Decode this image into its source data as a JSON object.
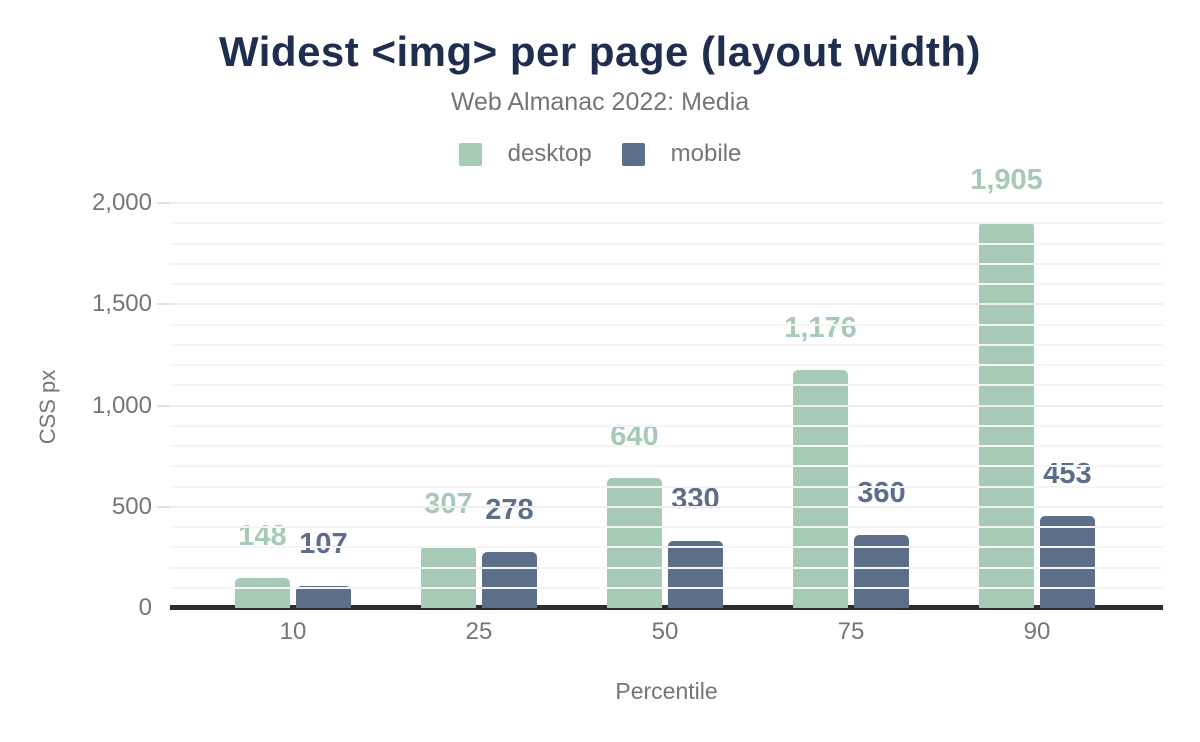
{
  "chart_data": {
    "type": "bar",
    "title": "Widest <img> per page (layout width)",
    "subtitle": "Web Almanac 2022: Media",
    "xlabel": "Percentile",
    "ylabel": "CSS px",
    "categories": [
      "10",
      "25",
      "50",
      "75",
      "90"
    ],
    "series": [
      {
        "name": "desktop",
        "color": "#a7cab7",
        "values": [
          148,
          307,
          640,
          1176,
          1905
        ],
        "labels": [
          "148",
          "307",
          "640",
          "1,176",
          "1,905"
        ]
      },
      {
        "name": "mobile",
        "color": "#5d6e8b",
        "values": [
          107,
          278,
          330,
          360,
          453
        ],
        "labels": [
          "107",
          "278",
          "330",
          "360",
          "453"
        ]
      }
    ],
    "ylim": [
      0,
      2000
    ],
    "y_ticks": [
      {
        "value": 0,
        "label": "0"
      },
      {
        "value": 500,
        "label": "500"
      },
      {
        "value": 1000,
        "label": "1,000"
      },
      {
        "value": 1500,
        "label": "1,500"
      },
      {
        "value": 2000,
        "label": "2,000"
      }
    ],
    "grid": {
      "minor_step": 100,
      "major_step": 500
    },
    "legend_position": "top"
  },
  "colors": {
    "title": "#1f2e4e",
    "axis_text": "#757575",
    "baseline": "#2c2c2c",
    "grid_major": "#ededed",
    "grid_minor": "#f5f5f5"
  }
}
